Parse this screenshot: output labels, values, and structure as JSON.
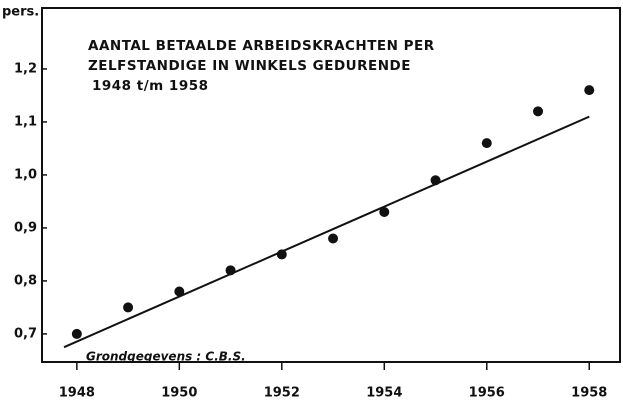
{
  "chart_data": {
    "type": "scatter",
    "title": [
      "AANTAL BETAALDE ARBEIDSKRACHTEN PER",
      "ZELFSTANDIGE IN WINKELS GEDURENDE",
      "1948 t/m 1958"
    ],
    "y_label": "pers.",
    "note": "Grondgegevens : C.B.S.",
    "x": [
      1948,
      1949,
      1950,
      1951,
      1952,
      1953,
      1954,
      1955,
      1956,
      1957,
      1958
    ],
    "values": [
      0.7,
      0.75,
      0.78,
      0.82,
      0.85,
      0.88,
      0.93,
      0.99,
      1.06,
      1.12,
      1.16
    ],
    "color": "#111111",
    "trend": {
      "x": [
        1947.75,
        1958
      ],
      "values": [
        0.675,
        1.11
      ],
      "color": "#111111"
    },
    "xlim": [
      1947.32,
      1958.6
    ],
    "ylim": [
      0.647,
      1.315
    ],
    "xticks": [
      1948,
      1950,
      1952,
      1954,
      1956,
      1958
    ],
    "yticks": [
      {
        "value": 0.7,
        "label": "0,7"
      },
      {
        "value": 0.8,
        "label": "0,8"
      },
      {
        "value": 0.9,
        "label": "0,9"
      },
      {
        "value": 1.0,
        "label": "1,0"
      },
      {
        "value": 1.1,
        "label": "1,1"
      },
      {
        "value": 1.2,
        "label": "1,2"
      }
    ]
  }
}
